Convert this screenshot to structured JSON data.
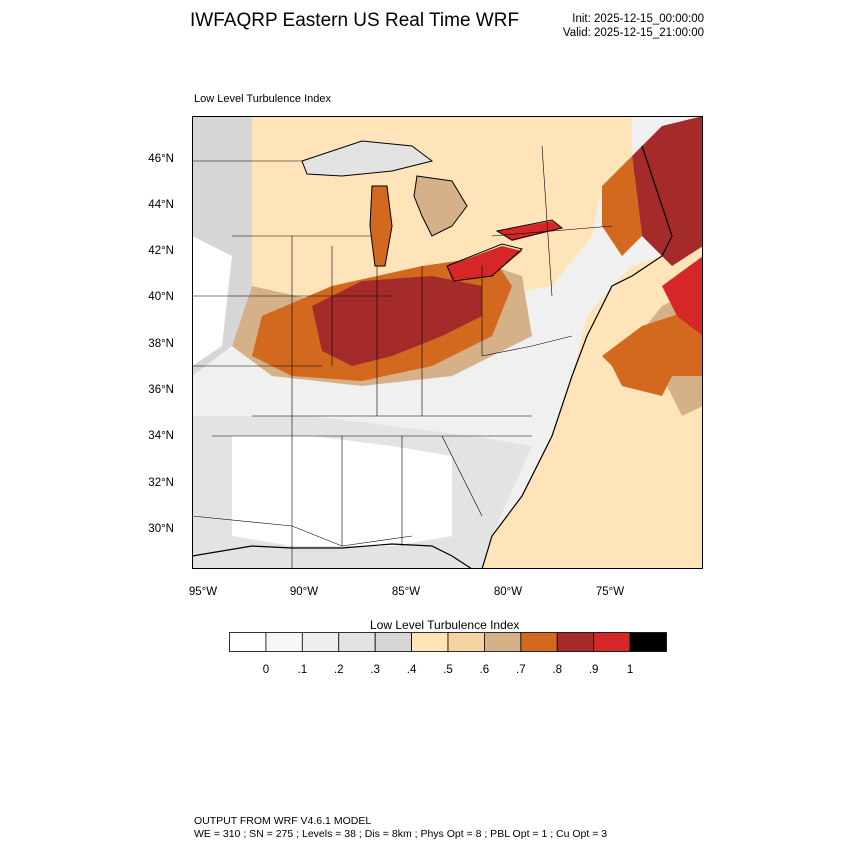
{
  "header": {
    "title": "IWFAQRP Eastern US Real Time WRF",
    "init": "Init: 2025-12-15_00:00:00",
    "valid": "Valid: 2025-12-15_21:00:00"
  },
  "panel": {
    "title": "Low Level Turbulence Index"
  },
  "axes": {
    "lat_labels": [
      "46°N",
      "44°N",
      "42°N",
      "40°N",
      "38°N",
      "36°N",
      "34°N",
      "32°N",
      "30°N"
    ],
    "lon_labels": [
      "95°W",
      "90°W",
      "85°W",
      "80°W",
      "75°W"
    ]
  },
  "colorbar": {
    "title": "Low Level Turbulence Index",
    "labels": [
      "0",
      ".1",
      ".2",
      ".3",
      ".4",
      ".5",
      ".6",
      ".7",
      ".8",
      ".9",
      "1"
    ],
    "colors": [
      "#ffffff",
      "#f7f7f7",
      "#efefef",
      "#e3e3e3",
      "#d6d6d6",
      "#fee4b8",
      "#f6d3a1",
      "#d6b088",
      "#d2691e",
      "#a52a2a",
      "#d62728",
      "#000000"
    ]
  },
  "map_colors": {
    "land_outline": "#000000",
    "lake": "#d6d6d6",
    "ocean_low": "#f6d3a1",
    "gray_low": "#e3e3e3",
    "tan": "#fee4b8",
    "brown": "#d6b088",
    "orange": "#d2691e",
    "dark_red": "#a52a2a",
    "red": "#d62728"
  },
  "footer": {
    "line1": "OUTPUT FROM WRF V4.6.1 MODEL",
    "line2": "WE = 310 ; SN = 275 ; Levels = 38 ; Dis = 8km ; Phys Opt = 8 ; PBL Opt = 1 ; Cu Opt = 3"
  }
}
